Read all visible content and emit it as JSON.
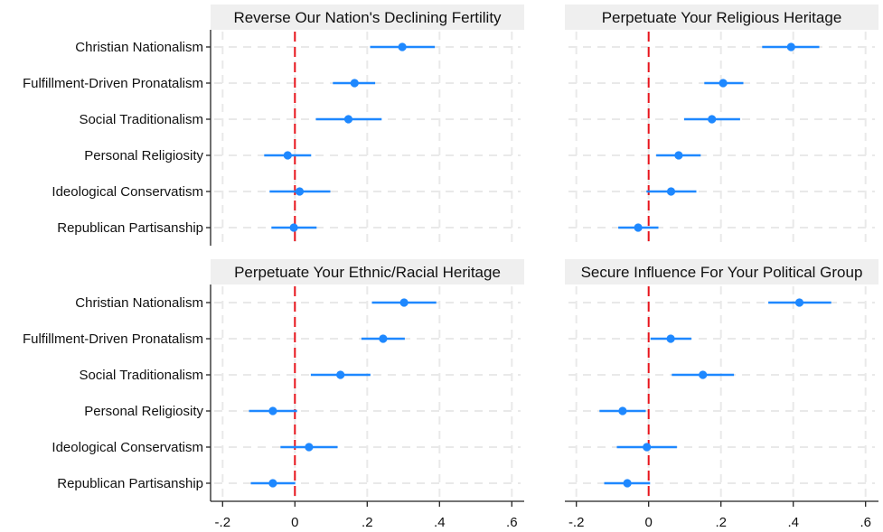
{
  "chart_data": {
    "type": "scatter",
    "subtype": "coefficient-plot",
    "layout": "2x2 panels",
    "reference_line": {
      "x": 0,
      "color": "#e8141c",
      "style": "dashed"
    },
    "marker_color": "#1e88ff",
    "xticks": [
      -0.2,
      0,
      0.2,
      0.4,
      0.6
    ],
    "xtick_labels": [
      "-.2",
      "0",
      ".2",
      ".4",
      ".6"
    ],
    "xlim": [
      -0.22,
      0.63
    ],
    "categories": [
      "Christian Nationalism",
      "Fulfillment-Driven Pronatalism",
      "Social Traditionalism",
      "Personal Religiosity",
      "Ideological Conservatism",
      "Republican Partisanship"
    ],
    "grid": true,
    "panels": [
      {
        "title": "Reverse Our Nation's Declining Fertility",
        "position": "top-left",
        "estimates": [
          0.297,
          0.165,
          0.148,
          -0.02,
          0.013,
          -0.003
        ],
        "ci_low": [
          0.208,
          0.105,
          0.058,
          -0.085,
          -0.07,
          -0.065
        ],
        "ci_high": [
          0.387,
          0.222,
          0.24,
          0.045,
          0.098,
          0.06
        ]
      },
      {
        "title": "Perpetuate Your Religious Heritage",
        "position": "top-right",
        "estimates": [
          0.394,
          0.206,
          0.175,
          0.083,
          0.062,
          -0.029
        ],
        "ci_low": [
          0.314,
          0.154,
          0.098,
          0.021,
          -0.006,
          -0.084
        ],
        "ci_high": [
          0.472,
          0.262,
          0.253,
          0.144,
          0.132,
          0.027
        ]
      },
      {
        "title": "Perpetuate Your Ethnic/Racial Heritage",
        "position": "bottom-left",
        "estimates": [
          0.302,
          0.244,
          0.126,
          -0.061,
          0.039,
          -0.061
        ],
        "ci_low": [
          0.213,
          0.184,
          0.044,
          -0.127,
          -0.04,
          -0.122
        ],
        "ci_high": [
          0.391,
          0.304,
          0.209,
          0.006,
          0.118,
          0.001
        ]
      },
      {
        "title": "Secure Influence For Your Political Group",
        "position": "bottom-right",
        "estimates": [
          0.417,
          0.061,
          0.15,
          -0.072,
          -0.005,
          -0.059
        ],
        "ci_low": [
          0.331,
          0.005,
          0.064,
          -0.136,
          -0.088,
          -0.123
        ],
        "ci_high": [
          0.505,
          0.118,
          0.236,
          -0.008,
          0.078,
          0.004
        ]
      }
    ]
  }
}
